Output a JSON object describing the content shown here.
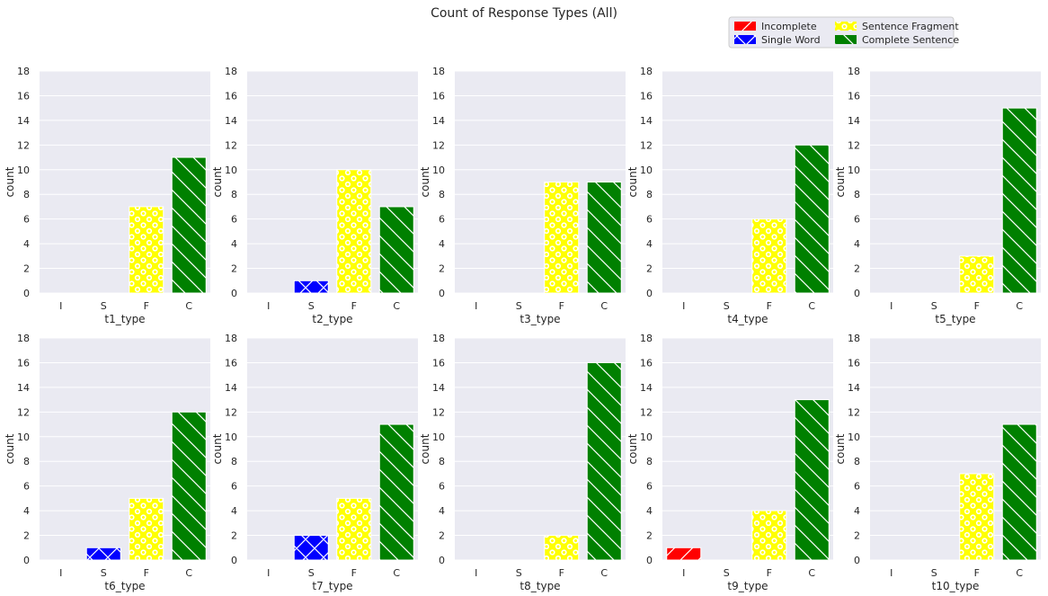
{
  "title": "Count of Response Types (All)",
  "colors": {
    "panel_bg": "#eaeaf2",
    "grid": "#ffffff",
    "text": "#262626",
    "pattern": "#ffffff"
  },
  "legend": {
    "placement": "top-right",
    "items": [
      {
        "label": "Incomplete",
        "color": "#ff0000",
        "hatch": "diag-right"
      },
      {
        "label": "Single Word",
        "color": "#0000ff",
        "hatch": "cross"
      },
      {
        "label": "Sentence Fragment",
        "color": "#ffff00",
        "hatch": "circles"
      },
      {
        "label": "Complete Sentence",
        "color": "#008000",
        "hatch": "diag-left"
      }
    ]
  },
  "chart_data": {
    "type": "bar",
    "categories": [
      "I",
      "S",
      "F",
      "C"
    ],
    "category_colors": [
      "#ff0000",
      "#0000ff",
      "#ffff00",
      "#008000"
    ],
    "category_hatches": [
      "diag-right",
      "cross",
      "circles",
      "diag-left"
    ],
    "ylabel": "count",
    "ylim": [
      0,
      18
    ],
    "yticks": [
      0,
      2,
      4,
      6,
      8,
      10,
      12,
      14,
      16,
      18
    ],
    "grid": true,
    "subplots": [
      {
        "xlabel": "t1_type",
        "values": [
          0,
          0,
          7,
          11
        ]
      },
      {
        "xlabel": "t2_type",
        "values": [
          0,
          1,
          10,
          7
        ]
      },
      {
        "xlabel": "t3_type",
        "values": [
          0,
          0,
          9,
          9
        ]
      },
      {
        "xlabel": "t4_type",
        "values": [
          0,
          0,
          6,
          12
        ]
      },
      {
        "xlabel": "t5_type",
        "values": [
          0,
          0,
          3,
          15
        ]
      },
      {
        "xlabel": "t6_type",
        "values": [
          0,
          1,
          5,
          12
        ]
      },
      {
        "xlabel": "t7_type",
        "values": [
          0,
          2,
          5,
          11
        ]
      },
      {
        "xlabel": "t8_type",
        "values": [
          0,
          0,
          2,
          16
        ]
      },
      {
        "xlabel": "t9_type",
        "values": [
          1,
          0,
          4,
          13
        ]
      },
      {
        "xlabel": "t10_type",
        "values": [
          0,
          0,
          7,
          11
        ]
      }
    ]
  }
}
